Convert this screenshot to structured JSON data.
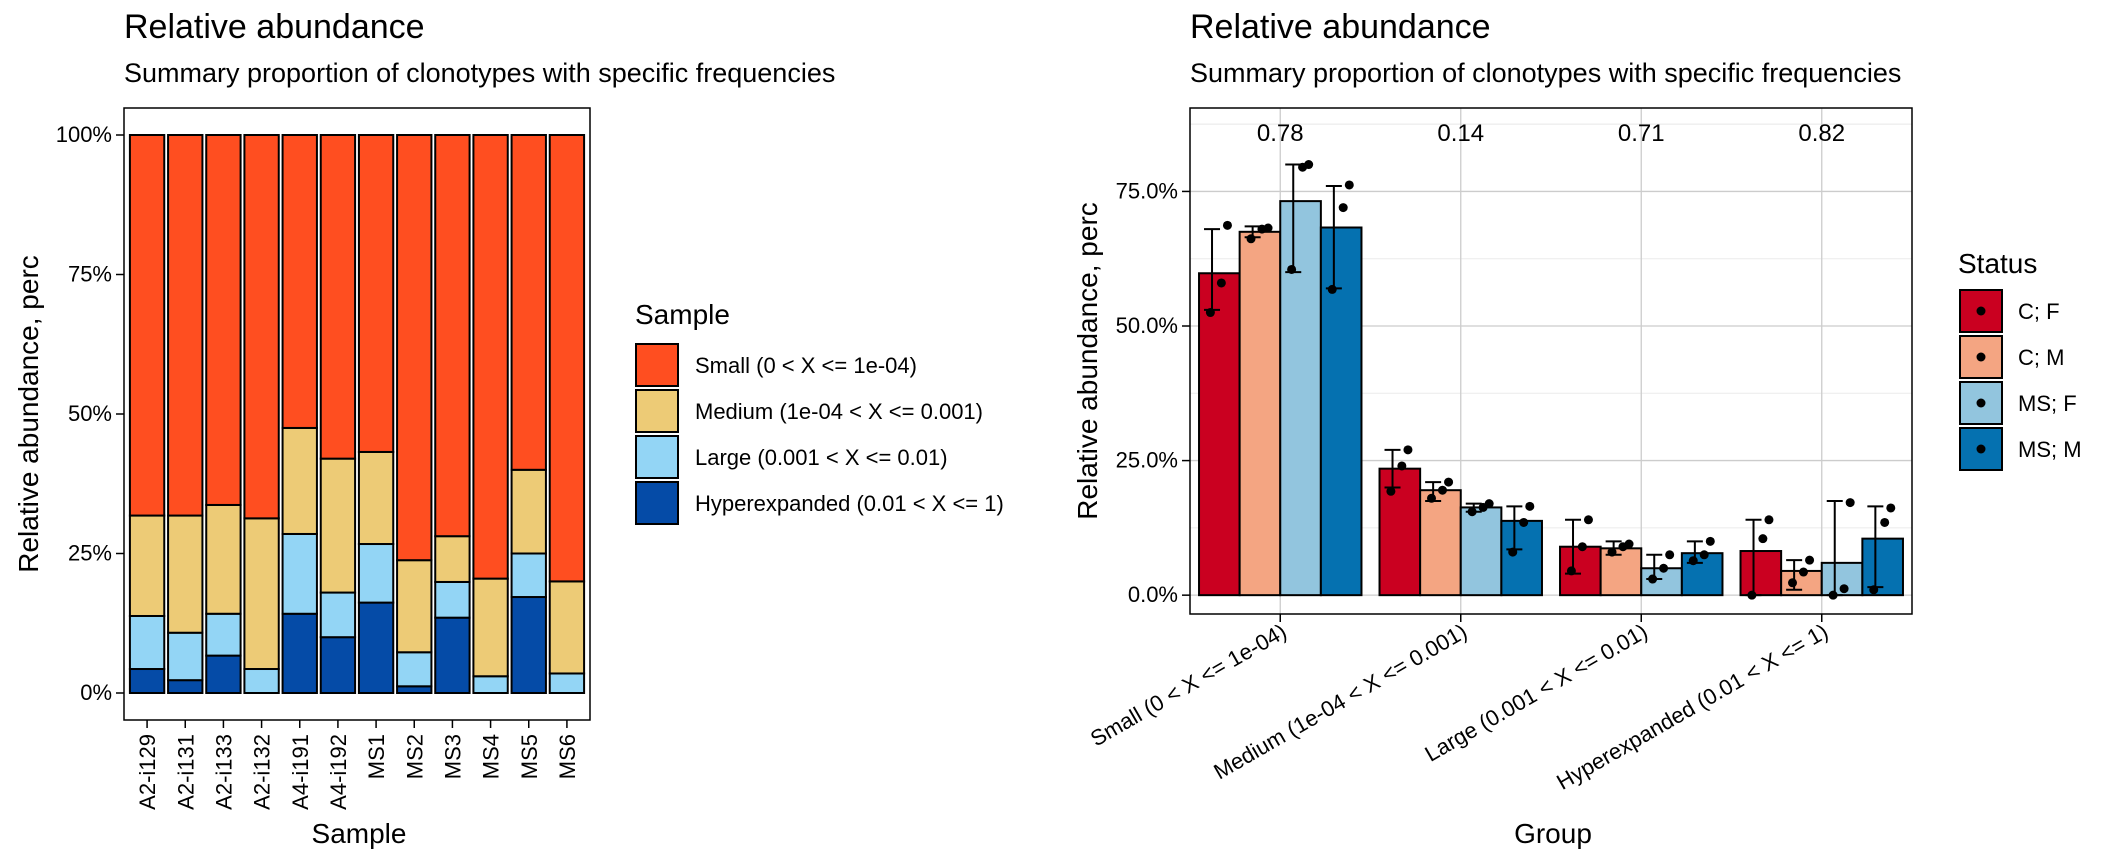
{
  "colors": {
    "size_classes": [
      "#FF4E20",
      "#EDCB76",
      "#93D5F5",
      "#054BA7"
    ],
    "status": [
      "#CA0020",
      "#F4A582",
      "#92C5DE",
      "#0571B0"
    ]
  },
  "chart_data": [
    {
      "type": "bar",
      "stacked": true,
      "title": "Relative abundance",
      "subtitle": "Summary proportion of clonotypes with specific frequencies",
      "xlabel": "Sample",
      "ylabel": "Relative abundance, perc",
      "ylim": [
        0,
        1
      ],
      "yticks": [
        0,
        0.25,
        0.5,
        0.75,
        1
      ],
      "ytick_labels": [
        "0%",
        "25%",
        "50%",
        "75%",
        "100%"
      ],
      "legend_title": "Sample",
      "legend_position": "right",
      "categories": [
        "A2-i129",
        "A2-i131",
        "A2-i133",
        "A2-i132",
        "A4-i191",
        "A4-i192",
        "MS1",
        "MS2",
        "MS3",
        "MS4",
        "MS5",
        "MS6"
      ],
      "series": [
        {
          "name": "Small (0 < X <= 1e-04)",
          "values": [
            0.682,
            0.682,
            0.663,
            0.687,
            0.525,
            0.58,
            0.568,
            0.762,
            0.719,
            0.795,
            0.6,
            0.8
          ]
        },
        {
          "name": "Medium (1e-04 < X <= 0.001)",
          "values": [
            0.18,
            0.21,
            0.195,
            0.27,
            0.19,
            0.24,
            0.165,
            0.165,
            0.082,
            0.175,
            0.15,
            0.165
          ]
        },
        {
          "name": "Large (0.001 < X <= 0.01)",
          "values": [
            0.095,
            0.085,
            0.075,
            0.043,
            0.143,
            0.08,
            0.105,
            0.061,
            0.064,
            0.03,
            0.078,
            0.035
          ]
        },
        {
          "name": "Hyperexpanded (0.01 < X <= 1)",
          "values": [
            0.043,
            0.023,
            0.067,
            0.0,
            0.142,
            0.1,
            0.162,
            0.012,
            0.135,
            0.0,
            0.172,
            0.0
          ]
        }
      ]
    },
    {
      "type": "bar",
      "title": "Relative abundance",
      "subtitle": "Summary proportion of clonotypes with specific frequencies",
      "xlabel": "Group",
      "ylabel": "Relative abundance, perc",
      "ylim": [
        -0.035,
        0.905
      ],
      "yticks": [
        0,
        0.25,
        0.5,
        0.75
      ],
      "ytick_labels": [
        "0.0%",
        "25.0%",
        "50.0%",
        "75.0%"
      ],
      "grid": true,
      "legend_title": "Status",
      "legend_position": "right",
      "categories": [
        "Small (0 < X <= 1e-04)",
        "Medium (1e-04 < X <= 0.001)",
        "Large (0.001 < X <= 0.01)",
        "Hyperexpanded (0.01 < X <= 1)"
      ],
      "pvalues": [
        "0.78",
        "0.14",
        "0.71",
        "0.82"
      ],
      "series": [
        {
          "name": "C; F",
          "values": [
            0.598,
            0.235,
            0.09,
            0.082
          ],
          "err": [
            [
              0.53,
              0.68
            ],
            [
              0.2,
              0.27
            ],
            [
              0.04,
              0.14
            ],
            [
              0.0,
              0.14
            ]
          ],
          "points": [
            [
              0.525,
              0.58,
              0.687
            ],
            [
              0.193,
              0.24,
              0.27
            ],
            [
              0.045,
              0.09,
              0.14
            ],
            [
              0.0,
              0.105,
              0.14
            ]
          ]
        },
        {
          "name": "C; M",
          "values": [
            0.675,
            0.195,
            0.087,
            0.045
          ],
          "err": [
            [
              0.665,
              0.685
            ],
            [
              0.175,
              0.21
            ],
            [
              0.075,
              0.1
            ],
            [
              0.01,
              0.065
            ]
          ],
          "points": [
            [
              0.662,
              0.68,
              0.682
            ],
            [
              0.18,
              0.195,
              0.21
            ],
            [
              0.08,
              0.09,
              0.095
            ],
            [
              0.023,
              0.043,
              0.065
            ]
          ]
        },
        {
          "name": "MS; F",
          "values": [
            0.732,
            0.163,
            0.05,
            0.06
          ],
          "err": [
            [
              0.6,
              0.8
            ],
            [
              0.155,
              0.17
            ],
            [
              0.03,
              0.075
            ],
            [
              0.0,
              0.175
            ]
          ],
          "points": [
            [
              0.605,
              0.795,
              0.8
            ],
            [
              0.155,
              0.163,
              0.17
            ],
            [
              0.03,
              0.05,
              0.075
            ],
            [
              0.0,
              0.012,
              0.172
            ]
          ]
        },
        {
          "name": "MS; M",
          "values": [
            0.683,
            0.138,
            0.078,
            0.105
          ],
          "err": [
            [
              0.57,
              0.76
            ],
            [
              0.085,
              0.165
            ],
            [
              0.06,
              0.1
            ],
            [
              0.015,
              0.165
            ]
          ],
          "points": [
            [
              0.568,
              0.72,
              0.762
            ],
            [
              0.08,
              0.135,
              0.165
            ],
            [
              0.064,
              0.075,
              0.1
            ],
            [
              0.01,
              0.135,
              0.162
            ]
          ]
        }
      ]
    }
  ]
}
